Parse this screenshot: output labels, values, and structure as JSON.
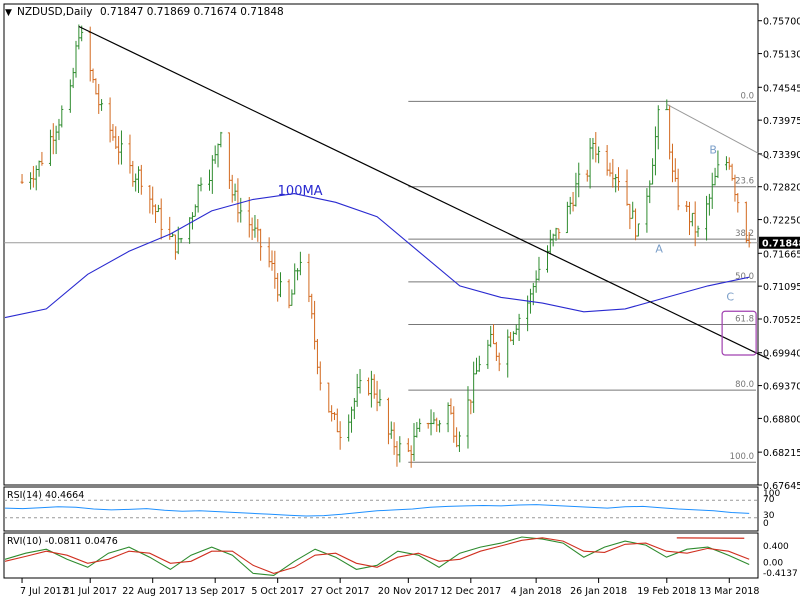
{
  "header": {
    "symbol": "NZDUSD,Daily",
    "ohlc": "0.71847 0.71869 0.71674 0.71848"
  },
  "chart_data": [
    {
      "type": "candlestick",
      "symbol": "NZDUSD",
      "timeframe": "Daily",
      "x_ticks": [
        "7 Jul 2017",
        "31 Jul 2017",
        "22 Aug 2017",
        "13 Sep 2017",
        "5 Oct 2017",
        "27 Oct 2017",
        "20 Nov 2017",
        "12 Dec 2017",
        "4 Jan 2018",
        "26 Jan 2018",
        "19 Feb 2018",
        "13 Mar 2018"
      ],
      "y_ticks": [
        "0.75700",
        "0.75130",
        "0.74545",
        "0.73975",
        "0.73390",
        "0.72820",
        "0.72250",
        "0.71665",
        "0.71095",
        "0.70525",
        "0.69940",
        "0.69370",
        "0.68800",
        "0.68215",
        "0.67645"
      ],
      "ylim": [
        0.67645,
        0.7599
      ],
      "last_price": "0.71848",
      "price_path": [
        [
          "7 Jul 2017",
          0.729
        ],
        [
          "13 Jul 2017",
          0.732
        ],
        [
          "19 Jul 2017",
          0.739
        ],
        [
          "24 Jul 2017",
          0.744
        ],
        [
          "27 Jul 2017",
          0.7555
        ],
        [
          "31 Jul 2017",
          0.748
        ],
        [
          "4 Aug 2017",
          0.741
        ],
        [
          "9 Aug 2017",
          0.736
        ],
        [
          "14 Aug 2017",
          0.731
        ],
        [
          "18 Aug 2017",
          0.73
        ],
        [
          "22 Aug 2017",
          0.725
        ],
        [
          "28 Aug 2017",
          0.719
        ],
        [
          "31 Aug 2017",
          0.718
        ],
        [
          "5 Sep 2017",
          0.724
        ],
        [
          "8 Sep 2017",
          0.73
        ],
        [
          "11 Sep 2017",
          0.731
        ],
        [
          "13 Sep 2017",
          0.733
        ],
        [
          "15 Sep 2017",
          0.739
        ],
        [
          "19 Sep 2017",
          0.727
        ],
        [
          "22 Sep 2017",
          0.724
        ],
        [
          "26 Sep 2017",
          0.721
        ],
        [
          "29 Sep 2017",
          0.718
        ],
        [
          "3 Oct 2017",
          0.714
        ],
        [
          "5 Oct 2017",
          0.711
        ],
        [
          "9 Oct 2017",
          0.707
        ],
        [
          "11 Oct 2017",
          0.712
        ],
        [
          "13 Oct 2017",
          0.716
        ],
        [
          "17 Oct 2017",
          0.705
        ],
        [
          "20 Oct 2017",
          0.695
        ],
        [
          "24 Oct 2017",
          0.688
        ],
        [
          "27 Oct 2017",
          0.686
        ],
        [
          "31 Oct 2017",
          0.69
        ],
        [
          "3 Nov 2017",
          0.693
        ],
        [
          "7 Nov 2017",
          0.694
        ],
        [
          "9 Nov 2017",
          0.692
        ],
        [
          "13 Nov 2017",
          0.685
        ],
        [
          "16 Nov 2017",
          0.683
        ],
        [
          "20 Nov 2017",
          0.682
        ],
        [
          "23 Nov 2017",
          0.685
        ],
        [
          "27 Nov 2017",
          0.688
        ],
        [
          "30 Nov 2017",
          0.687
        ],
        [
          "4 Dec 2017",
          0.69
        ],
        [
          "7 Dec 2017",
          0.685
        ],
        [
          "12 Dec 2017",
          0.692
        ],
        [
          "15 Dec 2017",
          0.698
        ],
        [
          "19 Dec 2017",
          0.701
        ],
        [
          "22 Dec 2017",
          0.699
        ],
        [
          "27 Dec 2017",
          0.704
        ],
        [
          "2 Jan 2018",
          0.709
        ],
        [
          "4 Jan 2018",
          0.713
        ],
        [
          "8 Jan 2018",
          0.717
        ],
        [
          "11 Jan 2018",
          0.72
        ],
        [
          "15 Jan 2018",
          0.724
        ],
        [
          "18 Jan 2018",
          0.728
        ],
        [
          "22 Jan 2018",
          0.731
        ],
        [
          "24 Jan 2018",
          0.736
        ],
        [
          "26 Jan 2018",
          0.734
        ],
        [
          "30 Jan 2018",
          0.732
        ],
        [
          "2 Feb 2018",
          0.73
        ],
        [
          "6 Feb 2018",
          0.724
        ],
        [
          "9 Feb 2018",
          0.72
        ],
        [
          "13 Feb 2018",
          0.73
        ],
        [
          "16 Feb 2018",
          0.74
        ],
        [
          "19 Feb 2018",
          0.741
        ],
        [
          "21 Feb 2018",
          0.73
        ],
        [
          "23 Feb 2018",
          0.726
        ],
        [
          "27 Feb 2018",
          0.723
        ],
        [
          "2 Mar 2018",
          0.72
        ],
        [
          "6 Mar 2018",
          0.726
        ],
        [
          "9 Mar 2018",
          0.731
        ],
        [
          "13 Mar 2018",
          0.733
        ],
        [
          "15 Mar 2018",
          0.728
        ],
        [
          "19 Mar 2018",
          0.72
        ],
        [
          "20 Mar 2018",
          0.71848
        ]
      ],
      "ma": {
        "label": "100MA",
        "color": "#2a2ad0",
        "values": [
          0.7055,
          0.707,
          0.713,
          0.717,
          0.72,
          0.724,
          0.726,
          0.727,
          0.7255,
          0.723,
          0.717,
          0.711,
          0.709,
          0.708,
          0.7065,
          0.707,
          0.709,
          0.711,
          0.7125
        ]
      },
      "trendlines": [
        {
          "from": [
            "27 Jul 2017",
            0.756
          ],
          "to": [
            "20 Mar 2018",
            0.6995
          ],
          "color": "#000000"
        },
        {
          "from": [
            "19 Feb 2018",
            0.7425
          ],
          "to": [
            "20 Mar 2018",
            0.733
          ],
          "color": "#9a9a9a"
        }
      ],
      "fibonacci": {
        "color": "#777777",
        "from_date": "20 Nov 2017",
        "to_date": "20 Mar 2018",
        "levels": [
          {
            "label": "0.0",
            "price": 0.743
          },
          {
            "label": "23.6",
            "price": 0.7282
          },
          {
            "label": "38.2",
            "price": 0.7191
          },
          {
            "label": "50.0",
            "price": 0.7117
          },
          {
            "label": "61.8",
            "price": 0.7043
          },
          {
            "label": "80.0",
            "price": 0.6929
          },
          {
            "label": "100.0",
            "price": 0.6804
          }
        ]
      },
      "annotations": [
        {
          "text": "100MA",
          "color": "#2a2ad0"
        },
        {
          "text": "A",
          "color": "#7a9ec8"
        },
        {
          "text": "B",
          "color": "#7a9ec8"
        },
        {
          "text": "C",
          "color": "#7a9ec8"
        }
      ],
      "highlight_box": {
        "color": "#a040b0"
      }
    },
    {
      "type": "line",
      "name": "RSI(14) 40.4664",
      "ylim": [
        0,
        100
      ],
      "y_ticks": [
        "100",
        "70",
        "30",
        "0"
      ],
      "levels": [
        70,
        30
      ],
      "series": [
        {
          "color": "#1e90ff",
          "values": [
            52,
            51,
            53,
            55,
            54,
            50,
            48,
            49,
            51,
            47,
            45,
            46,
            44,
            42,
            40,
            38,
            36,
            34,
            35,
            38,
            42,
            46,
            48,
            50,
            54,
            56,
            57,
            58,
            57,
            59,
            60,
            58,
            56,
            54,
            52,
            55,
            56,
            53,
            50,
            48,
            46,
            42,
            40
          ]
        }
      ]
    },
    {
      "type": "line",
      "name": "RVI(10) -0.0811 0.0476",
      "ylim": [
        -0.4137,
        0.7
      ],
      "y_ticks": [
        "0.400",
        "0.00",
        "-0.4137"
      ],
      "series": [
        {
          "color": "#2e8b2e",
          "values": [
            0.05,
            0.2,
            0.3,
            0.05,
            -0.15,
            0.2,
            0.35,
            0.1,
            -0.2,
            0.15,
            0.35,
            0.15,
            -0.3,
            -0.35,
            0.0,
            0.3,
            0.1,
            -0.2,
            -0.1,
            0.25,
            0.15,
            -0.15,
            0.2,
            0.35,
            0.45,
            0.6,
            0.55,
            0.45,
            0.1,
            0.35,
            0.5,
            0.4,
            0.1,
            0.3,
            0.35,
            0.15,
            -0.08
          ]
        },
        {
          "color": "#d03020",
          "values": [
            0.0,
            0.12,
            0.25,
            0.15,
            -0.05,
            0.05,
            0.25,
            0.2,
            -0.05,
            0.0,
            0.25,
            0.25,
            -0.1,
            -0.3,
            -0.15,
            0.15,
            0.2,
            -0.05,
            -0.15,
            0.1,
            0.2,
            0.0,
            0.05,
            0.25,
            0.38,
            0.52,
            0.58,
            0.5,
            0.25,
            0.22,
            0.42,
            0.45,
            0.25,
            0.2,
            0.32,
            0.25,
            0.05
          ]
        }
      ],
      "divergence_line": {
        "color": "#d03020"
      }
    }
  ]
}
